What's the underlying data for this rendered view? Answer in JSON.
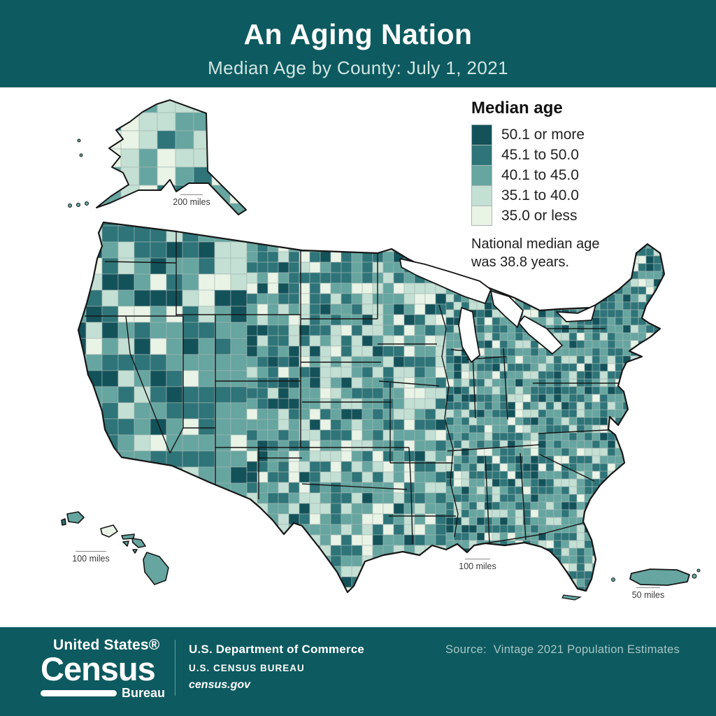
{
  "header": {
    "title": "An Aging Nation",
    "subtitle": "Median Age by County: July 1, 2021"
  },
  "legend": {
    "title": "Median age",
    "items": [
      {
        "label": "50.1 or more",
        "color": "#14525a"
      },
      {
        "label": "45.1 to 50.0",
        "color": "#2e7478"
      },
      {
        "label": "40.1 to 45.0",
        "color": "#66a5a0"
      },
      {
        "label": "35.1 to 40.0",
        "color": "#c4dfd3"
      },
      {
        "label": "35.0 or less",
        "color": "#e9f3e6"
      }
    ],
    "note_line1": "National median age",
    "note_line2": "was 38.8 years."
  },
  "map": {
    "scale_bars": [
      {
        "label": "200 miles"
      },
      {
        "label": "100 miles"
      },
      {
        "label": "100 miles"
      },
      {
        "label": "50 miles"
      }
    ]
  },
  "footer": {
    "logo_line1": "United States®",
    "logo_line2": "Census",
    "logo_line3": "Bureau",
    "dept_line1": "U.S. Department of Commerce",
    "dept_line2": "U.S. CENSUS BUREAU",
    "dept_line3": "census.gov",
    "source": "Source:  Vintage 2021 Population Estimates"
  },
  "colors": {
    "header_bg": "#0d5a60",
    "title_text": "#ffffff",
    "subtitle_text": "#cfe6e2",
    "body_text": "#1d1d1d",
    "source_text": "#a9c6c5",
    "county_border": "#a3b8b4",
    "state_border": "#161616",
    "water_fill": "#ffffff"
  }
}
